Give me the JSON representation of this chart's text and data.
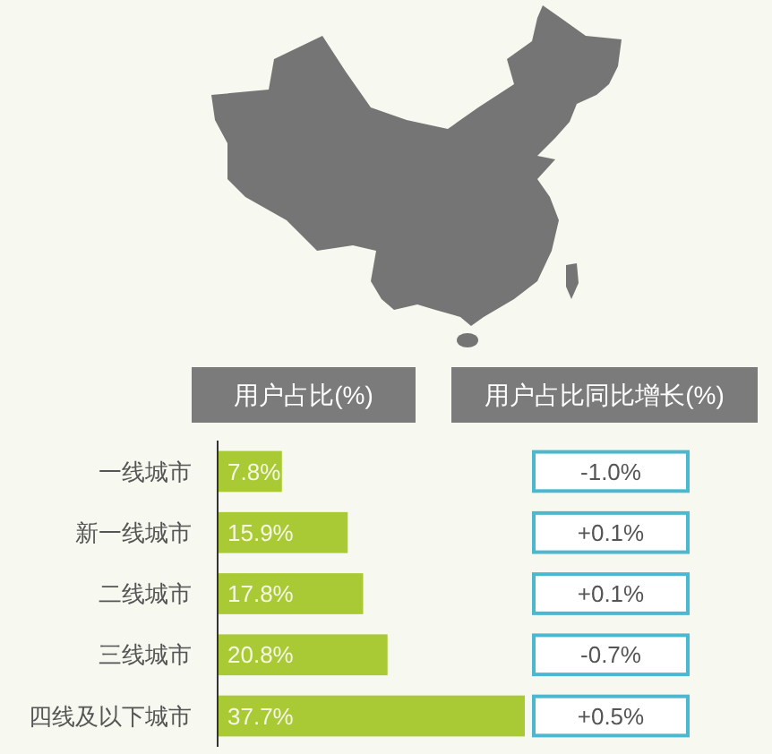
{
  "chart_data": [
    {
      "type": "bar",
      "orientation": "horizontal",
      "title": "用户占比(%)",
      "categories": [
        "一线城市",
        "新一线城市",
        "二线城市",
        "三线城市",
        "四线及以下城市"
      ],
      "values": [
        7.8,
        15.9,
        17.8,
        20.8,
        37.7
      ],
      "value_labels": [
        "7.8%",
        "15.9%",
        "17.8%",
        "20.8%",
        "37.7%"
      ],
      "color": "#a9c935"
    },
    {
      "type": "other",
      "title": "用户占比同比增长(%)",
      "values": [
        -1.0,
        0.1,
        0.1,
        -0.7,
        0.5
      ],
      "value_labels": [
        "-1.0%",
        "+0.1%",
        "+0.1%",
        "-0.7%",
        "+0.5%"
      ],
      "color": "#4cb8cf"
    }
  ]
}
